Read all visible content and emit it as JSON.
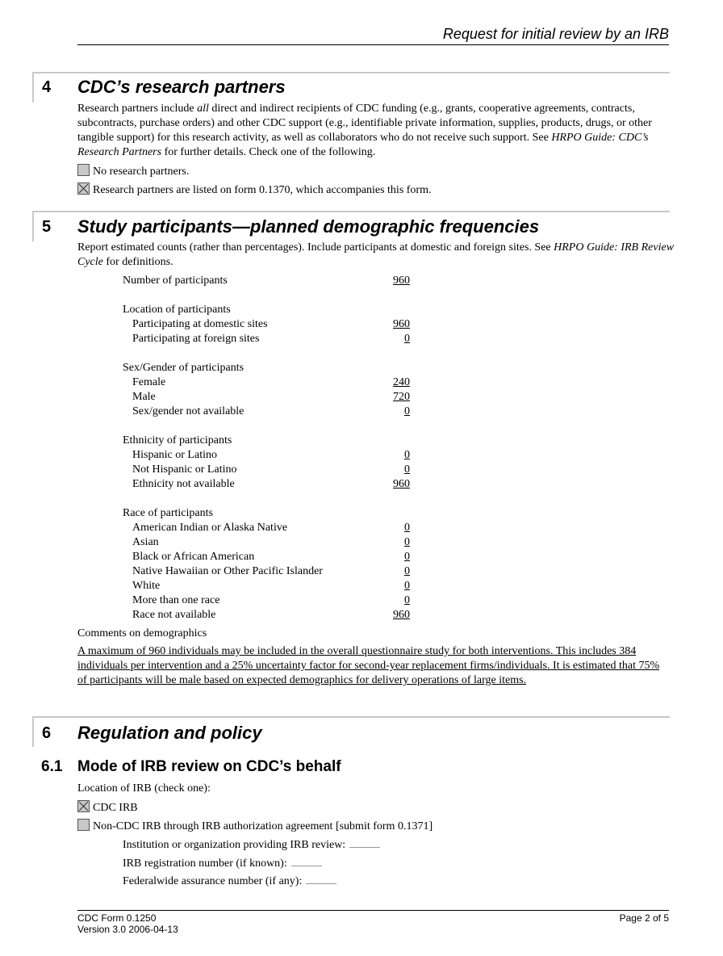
{
  "header": {
    "title": "Request for initial review by an IRB"
  },
  "section4": {
    "number": "4",
    "title": "CDC’s research partners",
    "para_pre": "Research partners include ",
    "para_em": "all",
    "para_mid": " direct and indirect recipients of CDC funding (e.g., grants, cooperative agreements, contracts, subcontracts, purchase orders) and other CDC support (e.g., identifiable private information, supplies, products, drugs, or other tangible support) for this research activity, as well as collaborators who do not receive such support. See ",
    "para_ref": "HRPO Guide: CDC’s Research Partners",
    "para_post": " for further details. Check one of the following.",
    "options": [
      {
        "label": "No research partners.",
        "checked": false
      },
      {
        "label": "Research partners are listed on form 0.1370, which accompanies this form.",
        "checked": true
      }
    ]
  },
  "section5": {
    "number": "5",
    "title": "Study participants—planned demographic frequencies",
    "para_pre": "Report estimated counts (rather than percentages). Include participants at domestic and foreign sites. See ",
    "para_ref": "HRPO Guide: IRB Review Cycle",
    "para_post": " for definitions.",
    "total": {
      "label": "Number of participants",
      "value": "960"
    },
    "groups": [
      {
        "label": "Location of participants",
        "items": [
          {
            "label": "Participating at domestic sites",
            "value": "960"
          },
          {
            "label": "Participating at foreign sites",
            "value": "0"
          }
        ]
      },
      {
        "label": "Sex/Gender of participants",
        "items": [
          {
            "label": "Female",
            "value": "240"
          },
          {
            "label": "Male",
            "value": "720"
          },
          {
            "label": "Sex/gender not available",
            "value": "0"
          }
        ]
      },
      {
        "label": "Ethnicity of participants",
        "items": [
          {
            "label": "Hispanic or Latino",
            "value": "0"
          },
          {
            "label": "Not Hispanic or Latino",
            "value": "0"
          },
          {
            "label": "Ethnicity not available",
            "value": "960"
          }
        ]
      },
      {
        "label": "Race of participants",
        "items": [
          {
            "label": "American Indian or Alaska Native",
            "value": "0"
          },
          {
            "label": "Asian",
            "value": "0"
          },
          {
            "label": "Black or African American",
            "value": "0"
          },
          {
            "label": "Native Hawaiian or Other Pacific Islander",
            "value": "0"
          },
          {
            "label": "White",
            "value": "0"
          },
          {
            "label": "More than one race",
            "value": "0"
          },
          {
            "label": "Race not available",
            "value": "960"
          }
        ]
      }
    ],
    "comments_label": "Comments on demographics",
    "comments": "A maximum of 960 individuals may be included in the overall questionnaire study for both interventions. This includes 384 individuals per intervention and a 25% uncertainty factor for second-year replacement firms/individuals. It is estimated that 75% of participants will be male based on expected demographics for delivery operations of large items."
  },
  "section6": {
    "number": "6",
    "title": "Regulation and policy",
    "sub": {
      "number": "6.1",
      "title": "Mode of IRB review on CDC’s behalf",
      "location_label": "Location of IRB (check one):",
      "options": [
        {
          "label": "CDC IRB",
          "checked": true
        },
        {
          "label": "Non-CDC IRB through IRB authorization agreement [submit form 0.1371]",
          "checked": false
        }
      ],
      "fields": [
        {
          "label": "Institution or organization providing IRB review:",
          "value": ""
        },
        {
          "label": "IRB registration number (if known):",
          "value": ""
        },
        {
          "label": "Federalwide assurance number (if any):",
          "value": ""
        }
      ]
    }
  },
  "footer": {
    "form": "CDC Form 0.1250",
    "version": "Version 3.0 2006-04-13",
    "page": "Page 2 of 5"
  }
}
